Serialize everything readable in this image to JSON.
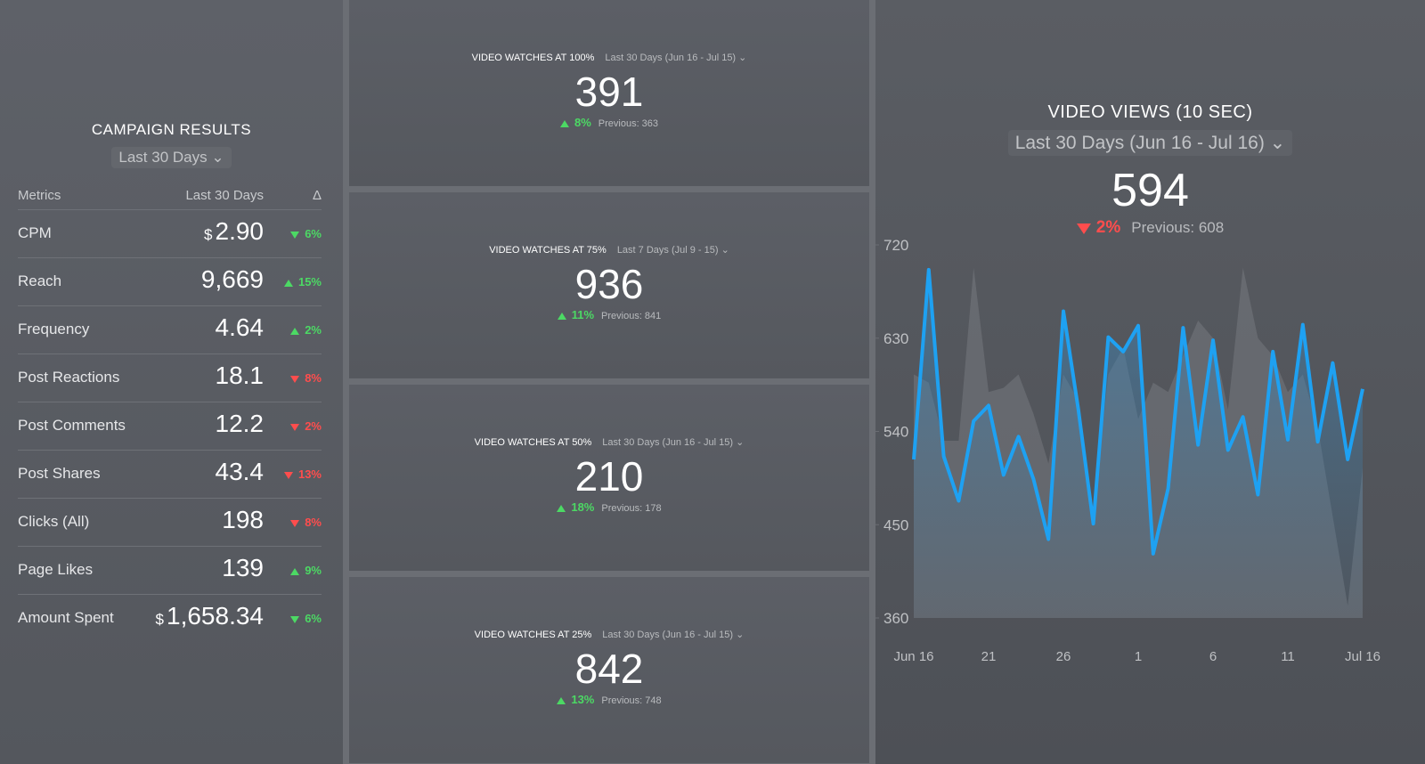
{
  "campaign": {
    "title": "CAMPAIGN RESULTS",
    "period": "Last 30 Days",
    "columns": [
      "Metrics",
      "Last 30 Days",
      "Δ"
    ],
    "rows": [
      {
        "metric": "CPM",
        "currency": "$",
        "value": "2.90",
        "change": "6%",
        "direction": "down",
        "color": "#4cd964"
      },
      {
        "metric": "Reach",
        "value": "9,669",
        "change": "15%",
        "direction": "up",
        "color": "#4cd964"
      },
      {
        "metric": "Frequency",
        "value": "4.64",
        "change": "2%",
        "direction": "up",
        "color": "#4cd964"
      },
      {
        "metric": "Post Reactions",
        "value": "18.1",
        "change": "8%",
        "direction": "down",
        "color": "#ff4d4d"
      },
      {
        "metric": "Post Comments",
        "value": "12.2",
        "change": "2%",
        "direction": "down",
        "color": "#ff4d4d"
      },
      {
        "metric": "Post Shares",
        "value": "43.4",
        "change": "13%",
        "direction": "down",
        "color": "#ff4d4d"
      },
      {
        "metric": "Clicks (All)",
        "value": "198",
        "change": "8%",
        "direction": "down",
        "color": "#ff4d4d"
      },
      {
        "metric": "Page Likes",
        "value": "139",
        "change": "9%",
        "direction": "up",
        "color": "#4cd964"
      },
      {
        "metric": "Amount Spent",
        "currency": "$",
        "value": "1,658.34",
        "change": "6%",
        "direction": "down",
        "color": "#4cd964"
      }
    ]
  },
  "tiles": [
    {
      "title": "VIDEO WATCHES AT 100%",
      "period": "Last 30 Days (Jun 16 - Jul 15)",
      "value": "391",
      "change": "8%",
      "direction": "up",
      "color": "#4cd964",
      "previous": "Previous: 363"
    },
    {
      "title": "VIDEO WATCHES AT 75%",
      "period": "Last 7 Days (Jul 9 - 15)",
      "value": "936",
      "change": "11%",
      "direction": "up",
      "color": "#4cd964",
      "previous": "Previous: 841"
    },
    {
      "title": "VIDEO WATCHES AT 50%",
      "period": "Last 30 Days (Jun 16 - Jul 15)",
      "value": "210",
      "change": "18%",
      "direction": "up",
      "color": "#4cd964",
      "previous": "Previous: 178"
    },
    {
      "title": "VIDEO WATCHES AT 25%",
      "period": "Last 30 Days (Jun 16 - Jul 15)",
      "value": "842",
      "change": "13%",
      "direction": "up",
      "color": "#4cd964",
      "previous": "Previous: 748"
    }
  ],
  "video_views": {
    "title": "VIDEO VIEWS (10 SEC)",
    "period": "Last 30 Days (Jun 16 - Jul 16)",
    "value": "594",
    "change": "2%",
    "direction": "down",
    "color": "#ff4d4d",
    "previous": "Previous: 608",
    "chart": {
      "type": "line",
      "categories": [
        "Jun 16",
        null,
        null,
        null,
        null,
        "21",
        null,
        null,
        null,
        null,
        "26",
        null,
        null,
        null,
        null,
        "1",
        null,
        null,
        null,
        null,
        "6",
        null,
        null,
        null,
        null,
        "11",
        null,
        null,
        null,
        null,
        "Jul 16"
      ],
      "series": [
        {
          "color": "#8a8d92",
          "values": [
            595,
            587,
            531,
            531,
            698,
            578,
            582,
            595,
            557,
            509,
            595,
            570,
            458,
            595,
            621,
            552,
            587,
            578,
            613,
            647,
            630,
            561,
            698,
            630,
            613,
            578,
            595,
            544,
            458,
            372,
            505
          ]
        },
        {
          "color": "#1ea1f2",
          "values": [
            513,
            696,
            516,
            473,
            550,
            565,
            498,
            535,
            494,
            436,
            656,
            561,
            451,
            631,
            617,
            642,
            422,
            485,
            640,
            527,
            628,
            522,
            554,
            479,
            617,
            532,
            643,
            530,
            606,
            513,
            581
          ]
        }
      ],
      "ylim": [
        360,
        720
      ],
      "yticks": [
        360,
        450,
        540,
        630,
        720
      ]
    }
  }
}
